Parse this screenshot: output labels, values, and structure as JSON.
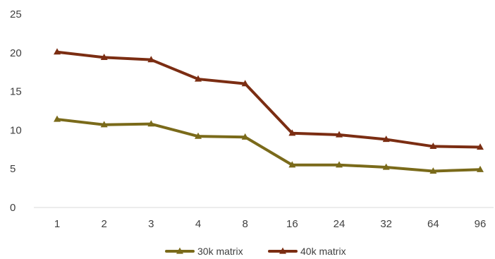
{
  "chart_data": {
    "type": "line",
    "categories": [
      "1",
      "2",
      "3",
      "4",
      "8",
      "16",
      "24",
      "32",
      "64",
      "96"
    ],
    "series": [
      {
        "name": "30k matrix",
        "values": [
          11.4,
          10.7,
          10.8,
          9.2,
          9.1,
          5.5,
          5.5,
          5.2,
          4.7,
          4.9
        ],
        "color": "#7a6a1a",
        "marker": "triangle"
      },
      {
        "name": "40k matrix",
        "values": [
          20.1,
          19.4,
          19.1,
          16.6,
          16.0,
          9.6,
          9.4,
          8.8,
          7.9,
          7.8
        ],
        "color": "#7b2d12",
        "marker": "triangle"
      }
    ],
    "yticks": [
      "0",
      "5",
      "10",
      "15",
      "20",
      "25"
    ],
    "ylim": [
      0,
      25
    ],
    "grid": false,
    "legend_position": "bottom",
    "title": "",
    "xlabel": "",
    "ylabel": ""
  }
}
